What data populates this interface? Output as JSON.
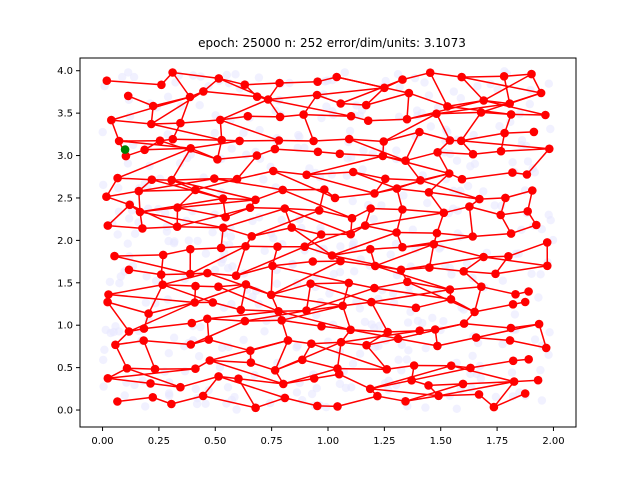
{
  "chart_data": {
    "type": "scatter",
    "title": "epoch: 25000 n: 252 error/dim/units: 3.1073",
    "xlabel": "",
    "ylabel": "",
    "xlim": [
      -0.1,
      2.1
    ],
    "ylim": [
      -0.2,
      4.15
    ],
    "xticks": [
      "0.00",
      "0.25",
      "0.50",
      "0.75",
      "1.00",
      "1.25",
      "1.50",
      "1.75",
      "2.00"
    ],
    "yticks": [
      "0.0",
      "0.5",
      "1.0",
      "1.5",
      "2.0",
      "2.5",
      "3.0",
      "3.5",
      "4.0"
    ],
    "grid": false,
    "legend": "none",
    "colors": {
      "network": "#ff0000",
      "highlight": "#008000",
      "samples": "#e6e6ff"
    },
    "highlight_point": [
      0.1,
      3.07
    ],
    "seed": 25000
  }
}
